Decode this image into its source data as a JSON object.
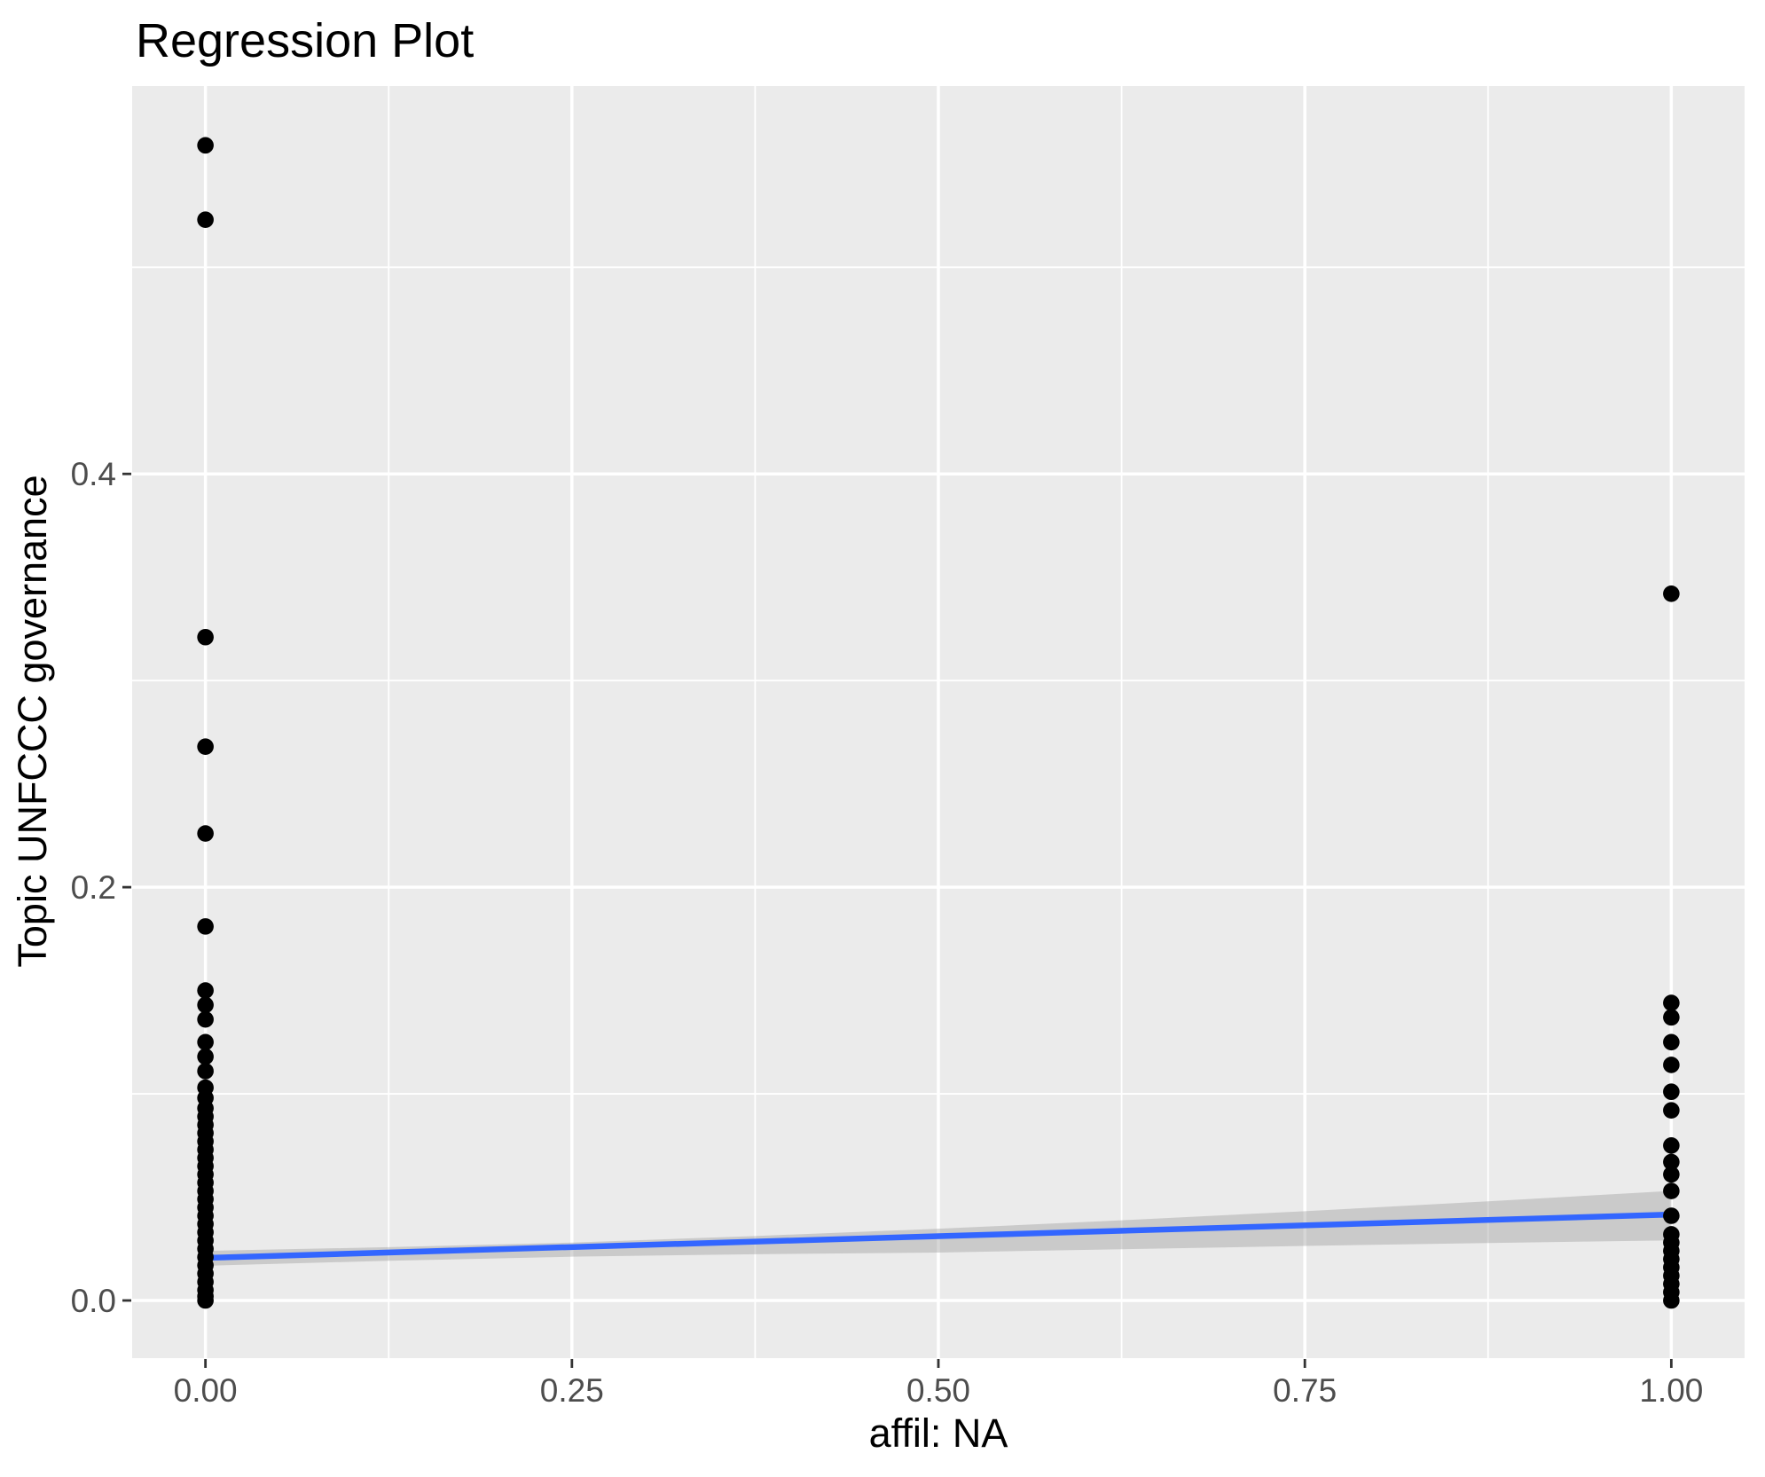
{
  "figure": {
    "background_color": "#FFFFFF"
  },
  "chart_data": {
    "type": "scatter",
    "title": "Regression Plot",
    "xlabel": "affil: NA",
    "ylabel": "Topic UNFCCC governance",
    "xlim": [
      -0.05,
      1.05
    ],
    "ylim": [
      -0.0279,
      0.5877
    ],
    "grid": "on",
    "legend": "none",
    "panel_background": "#EBEBEB",
    "gridline_color": "#FFFFFF",
    "x_ticks": {
      "values": [
        0,
        0.25,
        0.5,
        0.75,
        1.0
      ],
      "labels": [
        "0.00",
        "0.25",
        "0.50",
        "0.75",
        "1.00"
      ]
    },
    "y_ticks": {
      "values": [
        0,
        0.2,
        0.4
      ],
      "labels": [
        "0.0",
        "0.2",
        "0.4"
      ]
    },
    "x_minor_gridlines": [
      0.125,
      0.375,
      0.625,
      0.875
    ],
    "y_minor_gridlines": [
      0.1,
      0.3,
      0.5
    ],
    "text_colors": {
      "title": "#000000",
      "axis_title": "#000000",
      "tick_label": "#4D4D4D",
      "tick_mark": "#333333"
    },
    "series": [
      {
        "name": "observations at affil=0",
        "type": "scatter",
        "color": "#000000",
        "x": 0,
        "y": [
          0.559,
          0.523,
          0.321,
          0.268,
          0.226,
          0.181,
          0.15,
          0.143,
          0.136,
          0.125,
          0.118,
          0.111,
          0.103,
          0.098,
          0.093,
          0.089,
          0.085,
          0.081,
          0.077,
          0.073,
          0.069,
          0.065,
          0.061,
          0.057,
          0.053,
          0.049,
          0.045,
          0.041,
          0.037,
          0.033,
          0.029,
          0.025,
          0.021,
          0.017,
          0.013,
          0.009,
          0.005,
          0.002,
          0.0
        ]
      },
      {
        "name": "observations at affil=1",
        "type": "scatter",
        "color": "#000000",
        "x": 1,
        "y": [
          0.342,
          0.144,
          0.137,
          0.125,
          0.114,
          0.101,
          0.092,
          0.075,
          0.067,
          0.061,
          0.053,
          0.041,
          0.032,
          0.028,
          0.024,
          0.02,
          0.016,
          0.012,
          0.008,
          0.004,
          0.0
        ]
      },
      {
        "name": "fitted regression line",
        "type": "line",
        "color": "#3366FF",
        "x": [
          0,
          1
        ],
        "y": [
          0.0206,
          0.0416
        ]
      },
      {
        "name": "confidence band",
        "type": "band",
        "color": "#999999",
        "opacity": 0.4,
        "x": [
          0,
          0.125,
          0.25,
          0.375,
          0.5,
          0.625,
          0.75,
          0.875,
          1
        ],
        "upper": [
          0.024,
          0.0258,
          0.028,
          0.0312,
          0.0347,
          0.0388,
          0.0432,
          0.048,
          0.053
        ],
        "lower": [
          0.0168,
          0.0192,
          0.0212,
          0.0224,
          0.0232,
          0.0248,
          0.0264,
          0.0278,
          0.0291
        ]
      }
    ]
  }
}
